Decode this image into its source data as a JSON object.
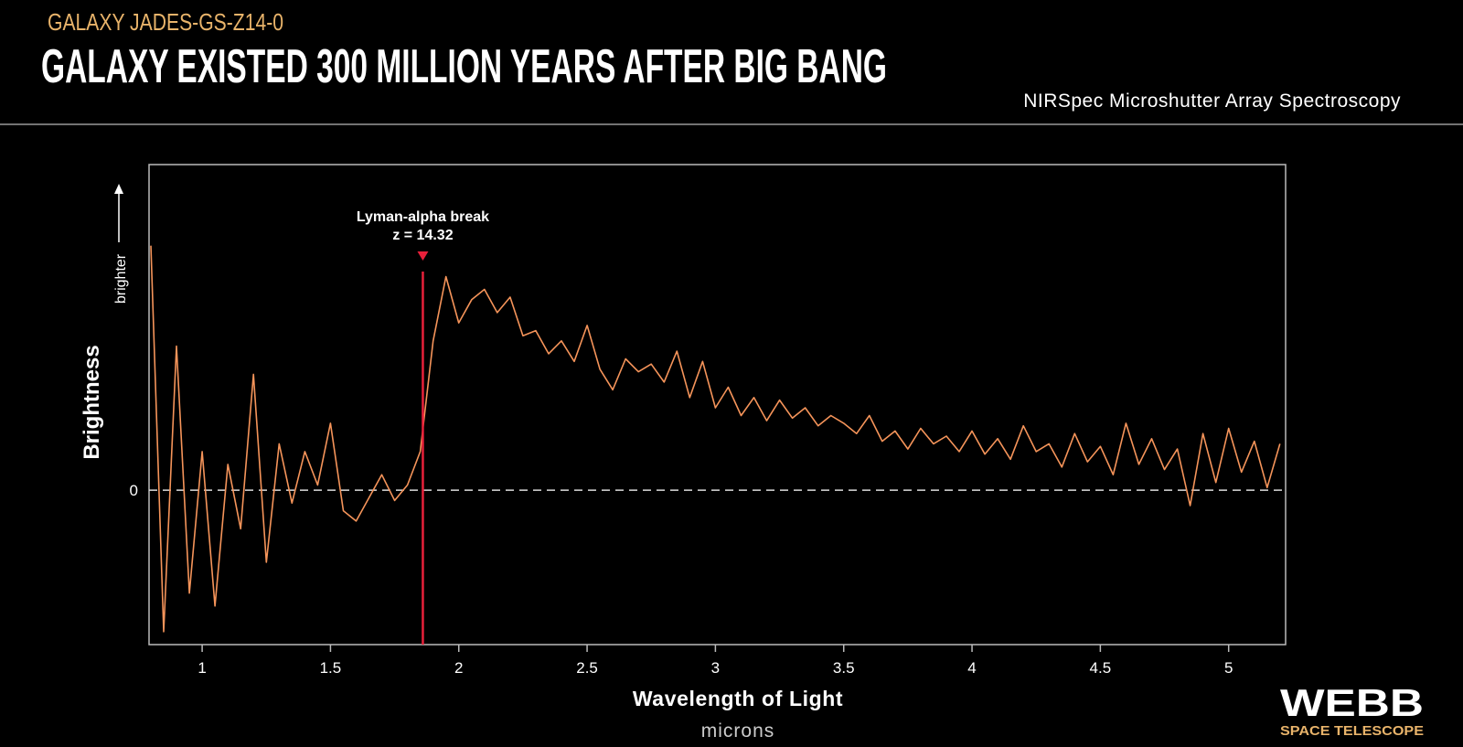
{
  "chart_data": {
    "type": "line",
    "kicker": "GALAXY JADES-GS-Z14-0",
    "title": "GALAXY EXISTED 300 MILLION YEARS AFTER BIG BANG",
    "subtitle": "NIRSpec Microshutter Array Spectroscopy",
    "x_label": "Wavelength of Light",
    "x_unit": "microns",
    "y_label": "Brightness",
    "y_hint": "brighter",
    "annotation": {
      "lines": [
        "Lyman-alpha break",
        "z = 14.32"
      ],
      "x": 1.86,
      "color": "#e8203a"
    },
    "logo": {
      "name": "WEBB",
      "sub": "SPACE TELESCOPE"
    },
    "color": "#f5945a",
    "x": [
      0.8,
      0.85,
      0.9,
      0.95,
      1.0,
      1.05,
      1.1,
      1.15,
      1.2,
      1.25,
      1.3,
      1.35,
      1.4,
      1.45,
      1.5,
      1.55,
      1.6,
      1.65,
      1.7,
      1.75,
      1.8,
      1.85,
      1.9,
      1.95,
      2.0,
      2.05,
      2.1,
      2.15,
      2.2,
      2.25,
      2.3,
      2.35,
      2.4,
      2.45,
      2.5,
      2.55,
      2.6,
      2.65,
      2.7,
      2.75,
      2.8,
      2.85,
      2.9,
      2.95,
      3.0,
      3.05,
      3.1,
      3.15,
      3.2,
      3.25,
      3.3,
      3.35,
      3.4,
      3.45,
      3.5,
      3.55,
      3.6,
      3.65,
      3.7,
      3.75,
      3.8,
      3.85,
      3.9,
      3.95,
      4.0,
      4.05,
      4.1,
      4.15,
      4.2,
      4.25,
      4.3,
      4.35,
      4.4,
      4.45,
      4.5,
      4.55,
      4.6,
      4.65,
      4.7,
      4.75,
      4.8,
      4.85,
      4.9,
      4.95,
      5.0,
      5.05,
      5.1,
      5.15,
      5.2
    ],
    "values": [
      9.5,
      -5.5,
      5.6,
      -4.0,
      1.5,
      -4.5,
      1.0,
      -1.5,
      4.5,
      -2.8,
      1.8,
      -0.5,
      1.5,
      0.2,
      2.6,
      -0.8,
      -1.2,
      -0.3,
      0.6,
      -0.4,
      0.2,
      1.5,
      5.8,
      8.3,
      6.5,
      7.4,
      7.8,
      6.9,
      7.5,
      6.0,
      6.2,
      5.3,
      5.8,
      5.0,
      6.4,
      4.7,
      3.9,
      5.1,
      4.6,
      4.9,
      4.2,
      5.4,
      3.6,
      5.0,
      3.2,
      4.0,
      2.9,
      3.6,
      2.7,
      3.5,
      2.8,
      3.2,
      2.5,
      2.9,
      2.6,
      2.2,
      2.9,
      1.9,
      2.3,
      1.6,
      2.4,
      1.8,
      2.1,
      1.5,
      2.3,
      1.4,
      2.0,
      1.2,
      2.5,
      1.5,
      1.8,
      0.9,
      2.2,
      1.1,
      1.7,
      0.6,
      2.6,
      1.0,
      2.0,
      0.8,
      1.6,
      -0.6,
      2.2,
      0.3,
      2.4,
      0.7,
      1.9,
      0.1,
      1.8
    ],
    "xlim": [
      0.793,
      5.222
    ],
    "ylim": [
      -6,
      12.65
    ],
    "xticks": [
      1,
      1.5,
      2,
      2.5,
      3,
      3.5,
      4,
      4.5,
      5
    ],
    "yticks": [
      0
    ]
  }
}
